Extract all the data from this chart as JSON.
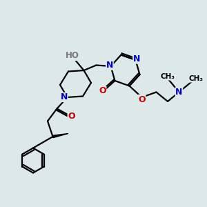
{
  "bg_color": "#dde8e8",
  "bond_color": "#000000",
  "N_color": "#0000cc",
  "O_color": "#cc0000",
  "lw": 1.6,
  "figsize": [
    3.0,
    3.0
  ],
  "dpi": 100,
  "xlim": [
    0,
    10
  ],
  "ylim": [
    0,
    10
  ]
}
